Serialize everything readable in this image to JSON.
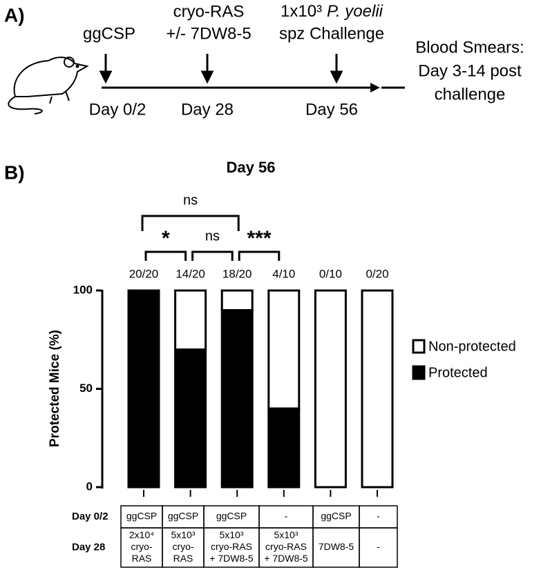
{
  "panel_a": {
    "label": "A)",
    "timepoints": [
      "Day 0/2",
      "Day 28",
      "Day 56"
    ],
    "prime": "ggCSP",
    "boost": [
      "cryo-RAS",
      "+/- 7DW8-5"
    ],
    "challenge": {
      "dose": "1x10³",
      "species": "P. yoelii",
      "text": "spz Challenge"
    },
    "readout": [
      "Blood Smears:",
      "Day 3-14 post",
      "challenge"
    ]
  },
  "chart_data": {
    "type": "bar",
    "panel_label": "B)",
    "title": "Day 56",
    "y_label": "Protected Mice (%)",
    "categories": [
      null,
      null,
      null,
      null,
      null,
      null
    ],
    "count_labels": [
      "20/20",
      "14/20",
      "18/20",
      "4/10",
      "0/10",
      "0/20"
    ],
    "series": [
      {
        "name": "Protected",
        "color": "#000000",
        "values": [
          100,
          70,
          90,
          40,
          0,
          0
        ]
      },
      {
        "name": "Non-protected",
        "color": "#ffffff",
        "values": [
          0,
          30,
          10,
          60,
          100,
          100
        ]
      }
    ],
    "stacked": true,
    "ylim": [
      0,
      100
    ],
    "yticks": [
      0,
      50,
      100
    ],
    "comparisons": [
      {
        "groups": [
          0,
          2
        ],
        "label": "ns"
      },
      {
        "groups": [
          0,
          1
        ],
        "label": "*"
      },
      {
        "groups": [
          1,
          2
        ],
        "label": "ns"
      },
      {
        "groups": [
          2,
          3
        ],
        "label": "***"
      }
    ]
  },
  "table": {
    "row_headers": [
      "Day 0/2",
      "Day 28"
    ],
    "rows": [
      [
        [
          "ggCSP"
        ],
        [
          "ggCSP"
        ],
        [
          "ggCSP"
        ],
        [
          "-"
        ],
        [
          "ggCSP"
        ],
        [
          "-"
        ]
      ],
      [
        [
          "2x10⁴",
          "cryo-",
          "RAS"
        ],
        [
          "5x10³",
          "cryo-",
          "RAS"
        ],
        [
          "5x10³",
          "cryo-RAS",
          "+ 7DW8-5"
        ],
        [
          "5x10³",
          "cryo-RAS",
          "+ 7DW8-5"
        ],
        [
          "7DW8-5"
        ],
        [
          "-"
        ]
      ]
    ]
  }
}
